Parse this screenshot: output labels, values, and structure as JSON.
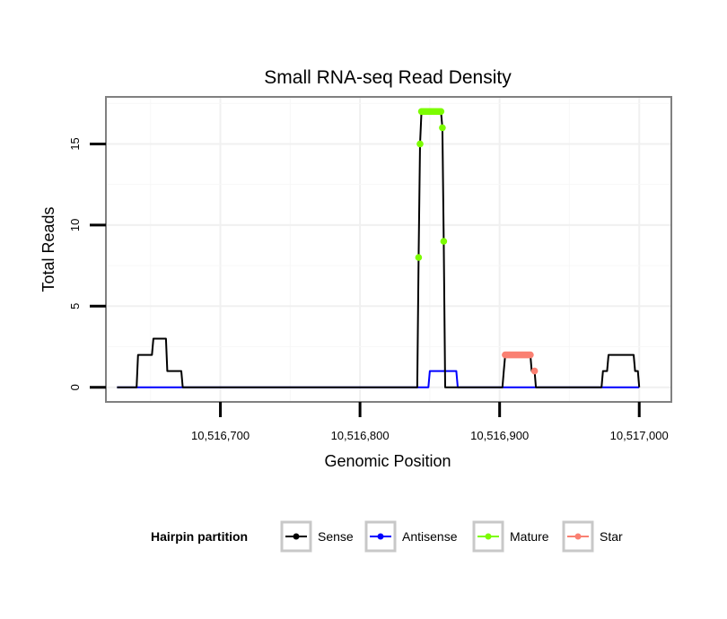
{
  "chart_data": {
    "type": "line",
    "title": "Small RNA-seq Read Density",
    "xlabel": "Genomic Position",
    "ylabel": "Total Reads",
    "xlim": [
      10516618,
      10517023
    ],
    "ylim": [
      -0.9,
      17.9
    ],
    "x_ticks": [
      10516700,
      10516800,
      10516900,
      10517000
    ],
    "x_tick_labels": [
      "10,516,700",
      "10,516,800",
      "10,516,900",
      "10,517,000"
    ],
    "y_ticks": [
      0,
      5,
      10,
      15
    ],
    "y_tick_labels": [
      "0",
      "5",
      "10",
      "15"
    ],
    "grid": true,
    "legend": {
      "title": "Hairpin partition",
      "position": "bottom"
    },
    "series": [
      {
        "name": "Sense",
        "color": "#000000",
        "style": "line",
        "points": [
          [
            10516626,
            0
          ],
          [
            10516640,
            0
          ],
          [
            10516641,
            2
          ],
          [
            10516651,
            2
          ],
          [
            10516652,
            3
          ],
          [
            10516661,
            3
          ],
          [
            10516662,
            1
          ],
          [
            10516672,
            1
          ],
          [
            10516673,
            0
          ],
          [
            10516841,
            0
          ],
          [
            10516842,
            8
          ],
          [
            10516843,
            15
          ],
          [
            10516844,
            17
          ],
          [
            10516858,
            17
          ],
          [
            10516859,
            16
          ],
          [
            10516860,
            9
          ],
          [
            10516861,
            0
          ],
          [
            10516902,
            0
          ],
          [
            10516903,
            1
          ],
          [
            10516904,
            2
          ],
          [
            10516922,
            2
          ],
          [
            10516923,
            1
          ],
          [
            10516925,
            1
          ],
          [
            10516926,
            0
          ],
          [
            10516973,
            0
          ],
          [
            10516974,
            1
          ],
          [
            10516977,
            1
          ],
          [
            10516978,
            2
          ],
          [
            10516996,
            2
          ],
          [
            10516997,
            1
          ],
          [
            10516999,
            1
          ],
          [
            10517000,
            0
          ]
        ]
      },
      {
        "name": "Antisense",
        "color": "#0000ff",
        "style": "line",
        "points": [
          [
            10516626,
            0
          ],
          [
            10516849,
            0
          ],
          [
            10516850,
            1
          ],
          [
            10516869,
            1
          ],
          [
            10516870,
            0
          ],
          [
            10517000,
            0
          ]
        ]
      },
      {
        "name": "Mature",
        "color": "#7cfc00",
        "style": "points",
        "points": [
          [
            10516842,
            8
          ],
          [
            10516843,
            15
          ],
          [
            10516844,
            17
          ],
          [
            10516845,
            17
          ],
          [
            10516846,
            17
          ],
          [
            10516847,
            17
          ],
          [
            10516848,
            17
          ],
          [
            10516849,
            17
          ],
          [
            10516850,
            17
          ],
          [
            10516851,
            17
          ],
          [
            10516852,
            17
          ],
          [
            10516853,
            17
          ],
          [
            10516854,
            17
          ],
          [
            10516855,
            17
          ],
          [
            10516856,
            17
          ],
          [
            10516857,
            17
          ],
          [
            10516858,
            17
          ],
          [
            10516859,
            16
          ],
          [
            10516860,
            9
          ]
        ]
      },
      {
        "name": "Star",
        "color": "#fa8072",
        "style": "points",
        "points": [
          [
            10516904,
            2
          ],
          [
            10516905,
            2
          ],
          [
            10516906,
            2
          ],
          [
            10516907,
            2
          ],
          [
            10516908,
            2
          ],
          [
            10516909,
            2
          ],
          [
            10516910,
            2
          ],
          [
            10516911,
            2
          ],
          [
            10516912,
            2
          ],
          [
            10516913,
            2
          ],
          [
            10516914,
            2
          ],
          [
            10516915,
            2
          ],
          [
            10516916,
            2
          ],
          [
            10516917,
            2
          ],
          [
            10516918,
            2
          ],
          [
            10516919,
            2
          ],
          [
            10516920,
            2
          ],
          [
            10516921,
            2
          ],
          [
            10516922,
            2
          ],
          [
            10516925,
            1
          ]
        ]
      }
    ]
  }
}
